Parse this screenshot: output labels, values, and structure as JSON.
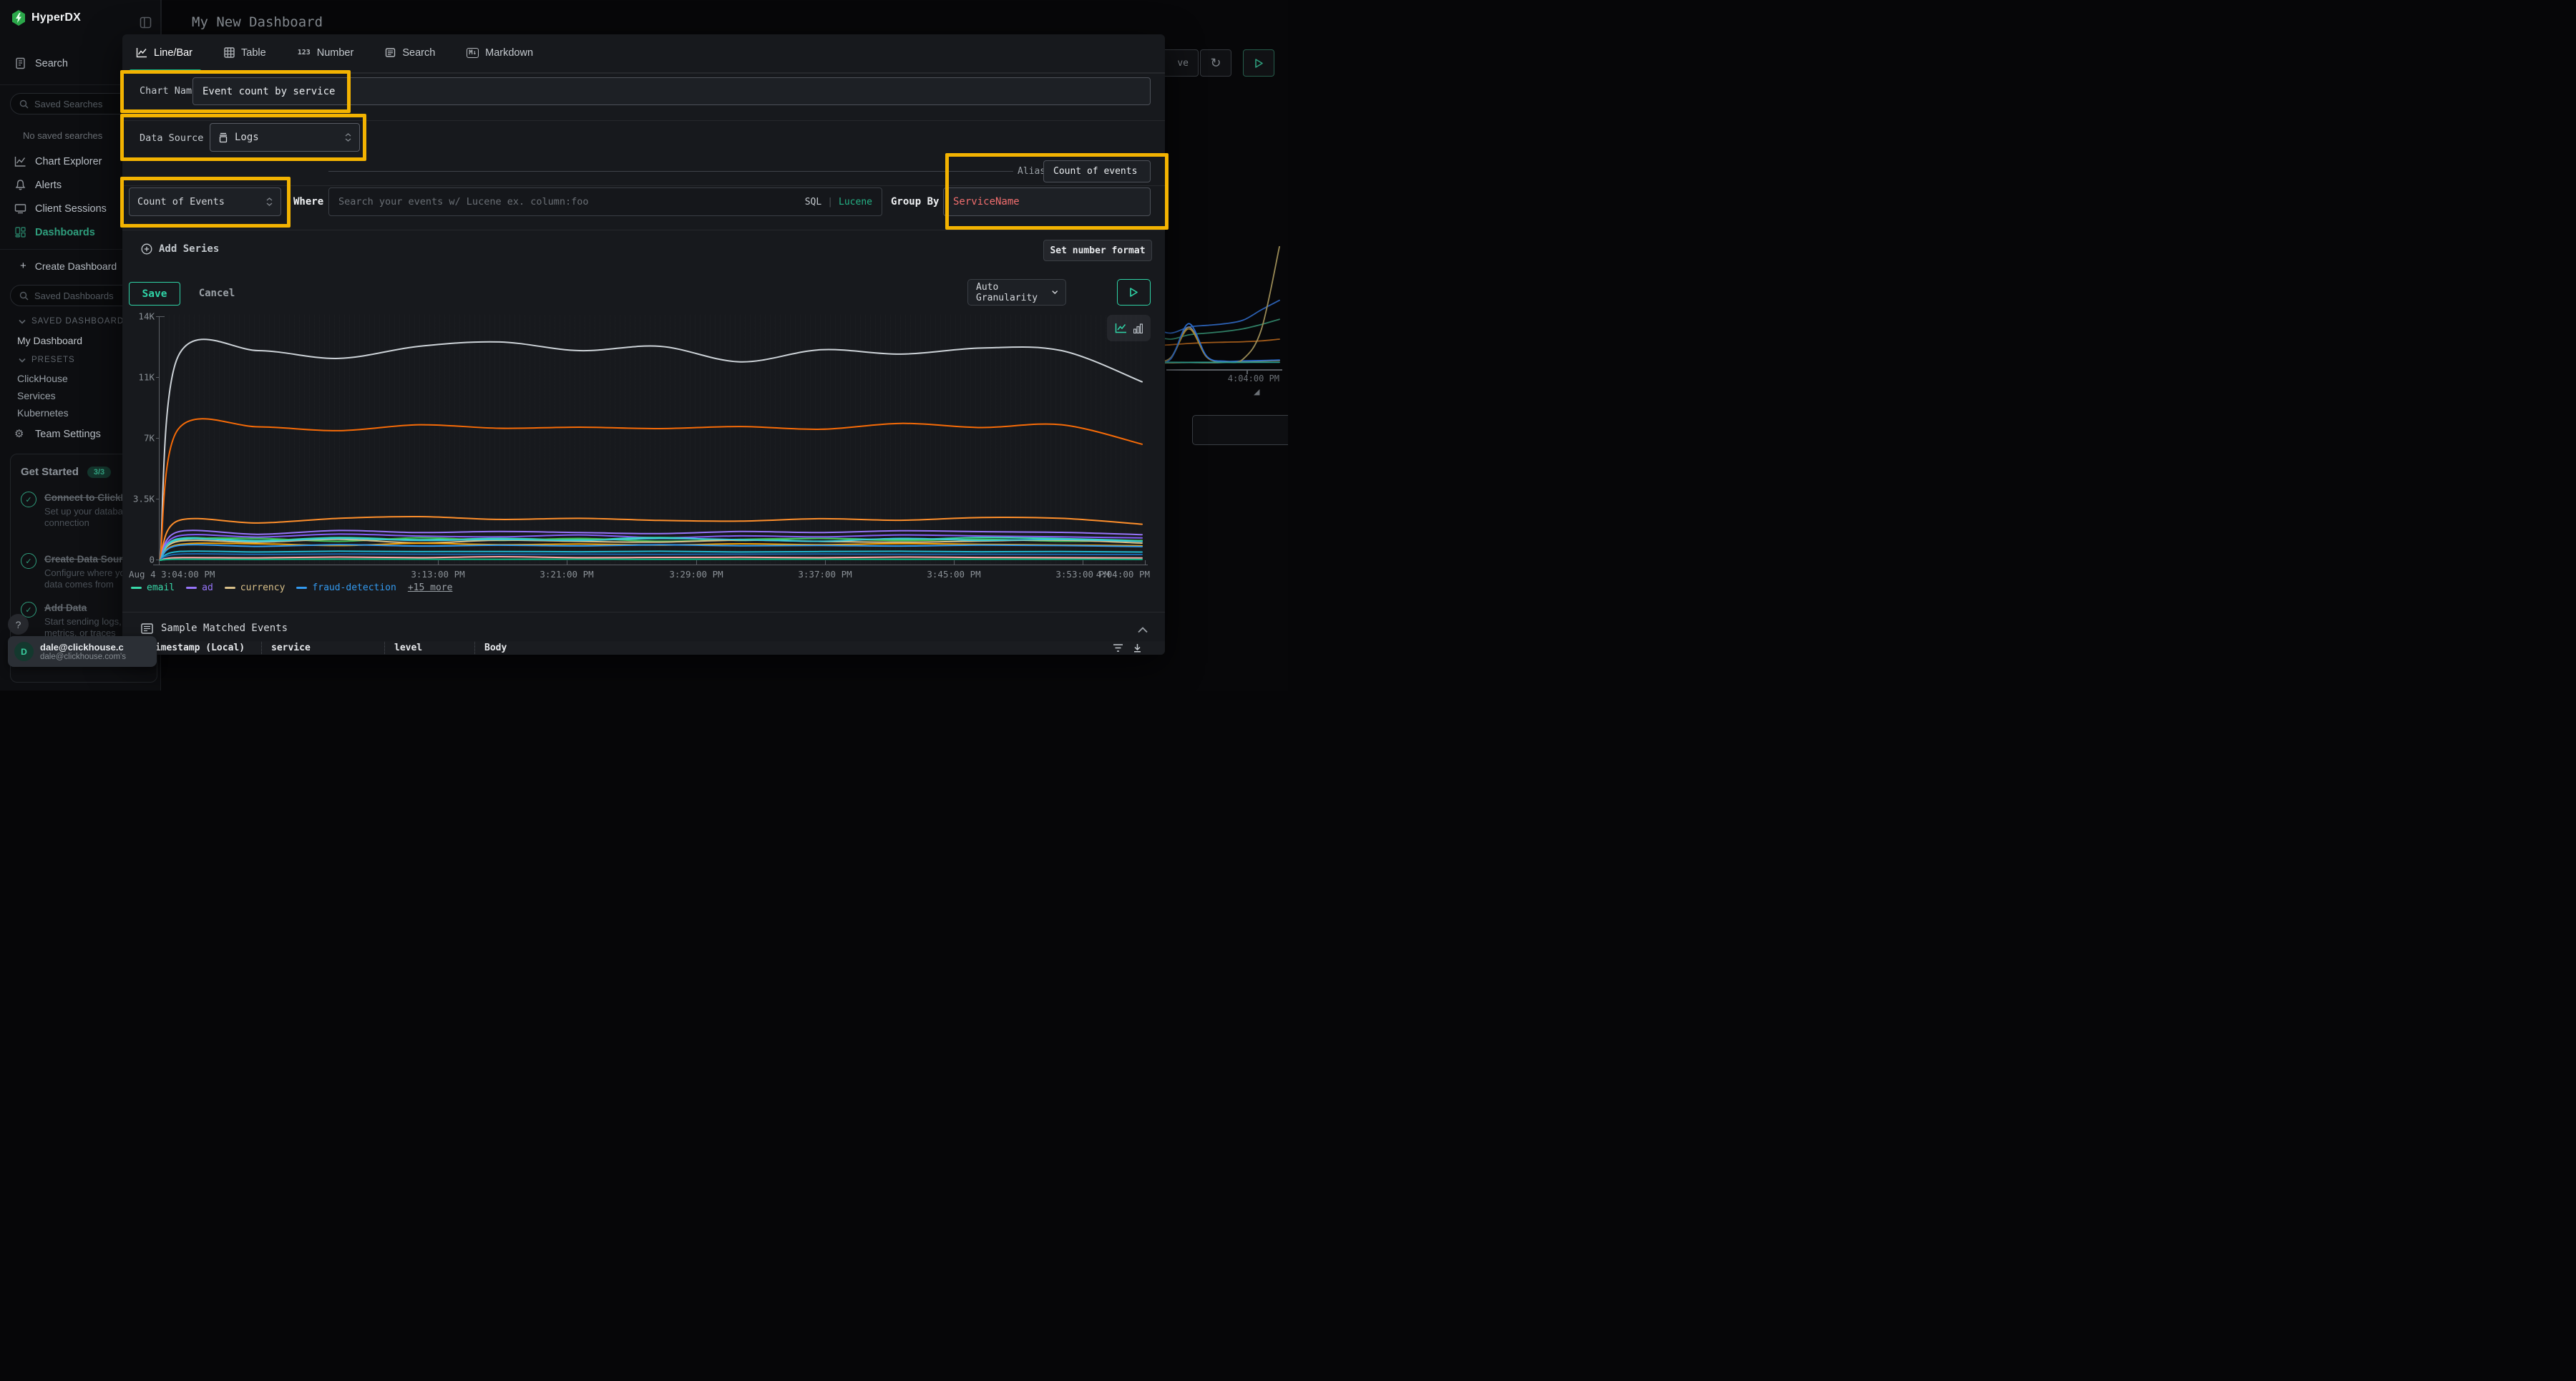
{
  "app": {
    "brand": "HyperDX",
    "page_title": "My New Dashboard"
  },
  "colors": {
    "accent": "#12b886",
    "save": "#2fd3a6",
    "highlight": "#f3b301",
    "group_by_value": "#f06e6e",
    "lucene": "#25b386",
    "sidebar_active": "#2f9e7d"
  },
  "sidebar": {
    "search_label": "Search",
    "saved_searches_placeholder": "Saved Searches",
    "no_saved": "No saved searches",
    "nav": [
      {
        "label": "Chart Explorer"
      },
      {
        "label": "Alerts"
      },
      {
        "label": "Client Sessions"
      },
      {
        "label": "Dashboards"
      }
    ],
    "create_dashboard": "Create Dashboard",
    "saved_dashboards_placeholder": "Saved Dashboards",
    "saved_section": "SAVED DASHBOARDS",
    "my_dashboard": "My Dashboard",
    "presets_section": "PRESETS",
    "presets": [
      "ClickHouse",
      "Services",
      "Kubernetes"
    ],
    "team_settings": "Team Settings",
    "get_started": {
      "title": "Get Started",
      "badge": "3/3",
      "items": [
        {
          "title": "Connect to ClickHouse",
          "desc": "Set up your database connection"
        },
        {
          "title": "Create Data Source",
          "desc": "Configure where your data comes from"
        },
        {
          "title": "Add Data",
          "desc": "Start sending logs, metrics, or traces"
        }
      ]
    },
    "help": "?",
    "user": {
      "avatar": "D",
      "name": "dale@clickhouse.c",
      "sub": "dale@clickhouse.com's"
    }
  },
  "modal": {
    "tabs": [
      {
        "label": "Line/Bar"
      },
      {
        "label": "Table"
      },
      {
        "label": "Number"
      },
      {
        "label": "Search"
      },
      {
        "label": "Markdown"
      }
    ],
    "number_tab_icon": "123",
    "markdown_tab_icon": "M↓",
    "chart_name": {
      "label": "Chart Name",
      "value": "Event count by service"
    },
    "data_source": {
      "label": "Data Source",
      "value": "Logs"
    },
    "aggregation": {
      "value": "Count of Events"
    },
    "where": {
      "label": "Where",
      "placeholder": "Search your events w/ Lucene ex. column:foo",
      "sql": "SQL",
      "divider": "|",
      "lucene": "Lucene"
    },
    "group_by": {
      "label": "Group By",
      "value": "ServiceName"
    },
    "alias": {
      "label": "Alias",
      "value": "Count of events"
    },
    "add_series": "Add Series",
    "set_number_format": "Set number format",
    "save": "Save",
    "cancel": "Cancel",
    "granularity": "Auto Granularity"
  },
  "sample_events": {
    "title": "Sample Matched Events",
    "columns": [
      "Timestamp (Local)",
      "service",
      "level",
      "Body"
    ]
  },
  "background": {
    "partial_button": "ve",
    "time_label": "4:04:00 PM"
  },
  "chart_data": [
    {
      "type": "line",
      "title": "Event count by service",
      "x_axis": {
        "ticks": [
          "Aug 4 3:04:00 PM",
          "3:13:00 PM",
          "3:21:00 PM",
          "3:29:00 PM",
          "3:37:00 PM",
          "3:45:00 PM",
          "3:53:00 PM",
          "4:04:00 PM"
        ]
      },
      "y_axis": {
        "ticks": [
          "0",
          "3.5K",
          "7K",
          "11K",
          "14K"
        ],
        "range": [
          0,
          14000
        ]
      },
      "legend": {
        "entries": [
          {
            "label": "email",
            "color": "#38d9a9"
          },
          {
            "label": "ad",
            "color": "#9775fa"
          },
          {
            "label": "currency",
            "color": "#d9c089"
          },
          {
            "label": "fraud-detection",
            "color": "#339af0"
          }
        ],
        "more": "+15 more"
      },
      "series": [
        {
          "label": "",
          "color": "#cdd3d8",
          "values": [
            0,
            11750,
            12100,
            11650,
            12350,
            12600,
            12100,
            12350,
            11450,
            12150,
            11900,
            12250,
            12100,
            10300
          ]
        },
        {
          "label": "",
          "color": "#f76b07",
          "values": [
            0,
            7550,
            7700,
            7480,
            7820,
            7620,
            7680,
            7600,
            7720,
            7560,
            7900,
            7660,
            7820,
            6700
          ]
        },
        {
          "label": "",
          "color": "#ff8f2b",
          "values": [
            0,
            2280,
            2150,
            2420,
            2520,
            2360,
            2420,
            2300,
            2260,
            2400,
            2310,
            2470,
            2420,
            2080
          ]
        },
        {
          "label": "ad",
          "color": "#9775fa",
          "values": [
            0,
            1640,
            1500,
            1720,
            1600,
            1660,
            1600,
            1540,
            1660,
            1600,
            1700,
            1650,
            1610,
            1480
          ]
        },
        {
          "label": "",
          "color": "#845ef7",
          "values": [
            0,
            1400,
            1340,
            1510,
            1400,
            1350,
            1460,
            1300,
            1410,
            1350,
            1460,
            1400,
            1350,
            1290
          ]
        },
        {
          "label": "email",
          "color": "#38d9a9",
          "values": [
            0,
            1240,
            1140,
            1310,
            1190,
            1260,
            1190,
            1310,
            1150,
            1260,
            1190,
            1310,
            1250,
            1130
          ]
        },
        {
          "label": "",
          "color": "#40c057",
          "values": [
            0,
            1150,
            1260,
            1090,
            1300,
            1150,
            1260,
            1100,
            1210,
            1260,
            1140,
            1210,
            1100,
            1150
          ]
        },
        {
          "label": "currency",
          "color": "#d9c089",
          "values": [
            0,
            1090,
            1040,
            1210,
            1000,
            1160,
            1090,
            1050,
            1160,
            1090,
            1040,
            1110,
            1160,
            990
          ]
        },
        {
          "label": "",
          "color": "#3bc9db",
          "values": [
            0,
            1190,
            1100,
            1260,
            1150,
            1200,
            1150,
            1260,
            1190,
            1100,
            1260,
            1150,
            1200,
            1090
          ]
        },
        {
          "label": "",
          "color": "#f59f00",
          "values": [
            0,
            900,
            950,
            850,
            980,
            900,
            940,
            880,
            950,
            900,
            960,
            920,
            880,
            840
          ]
        },
        {
          "label": "fraud-detection",
          "color": "#339af0",
          "values": [
            0,
            850,
            800,
            900,
            820,
            870,
            830,
            890,
            840,
            860,
            820,
            880,
            850,
            790
          ]
        },
        {
          "label": "",
          "color": "#22b8cf",
          "values": [
            0,
            500,
            480,
            525,
            500,
            510,
            490,
            520,
            480,
            505,
            520,
            490,
            505,
            475
          ]
        },
        {
          "label": "",
          "color": "#1864ab",
          "values": [
            0,
            350,
            340,
            362,
            350,
            345,
            356,
            340,
            352,
            360,
            345,
            350,
            340,
            332
          ]
        },
        {
          "label": "",
          "color": "#ffa8a8",
          "values": [
            0,
            150,
            140,
            185,
            150,
            205,
            150,
            165,
            175,
            150,
            185,
            160,
            150,
            138
          ]
        },
        {
          "label": "",
          "color": "#12b886",
          "values": [
            0,
            62,
            55,
            66,
            60,
            58,
            63,
            57,
            60,
            64,
            58,
            61,
            63,
            54
          ]
        }
      ]
    },
    {
      "type": "line",
      "title": "",
      "x_axis": {
        "ticks": [
          "4:04:00 PM"
        ]
      },
      "y_axis": {
        "ticks": [],
        "range": [
          0,
          14000
        ]
      },
      "series": [
        {
          "label": "",
          "color": "#2b5fb0",
          "values": [
            4700,
            5000,
            4200,
            3600,
            4300,
            4500,
            4700,
            5100,
            6300,
            7400
          ]
        },
        {
          "label": "",
          "color": "#2f7d64",
          "values": [
            3600,
            3550,
            3300,
            2900,
            3400,
            3600,
            3800,
            4100,
            4600,
            5200
          ]
        },
        {
          "label": "",
          "color": "#a05a1a",
          "values": [
            2300,
            2250,
            2150,
            2250,
            2400,
            2500,
            2550,
            2600,
            2700,
            2900
          ]
        },
        {
          "label": "",
          "color": "#8a8f94",
          "values": [
            260,
            300,
            360,
            750,
            4300,
            850,
            310,
            350,
            390,
            440
          ]
        },
        {
          "label": "",
          "color": "#b08a2a",
          "values": [
            250,
            280,
            330,
            700,
            4100,
            800,
            300,
            330,
            380,
            430
          ]
        },
        {
          "label": "",
          "color": "#2b6fd4",
          "values": [
            300,
            300,
            350,
            600,
            4700,
            900,
            350,
            380,
            420,
            480
          ]
        },
        {
          "label": "",
          "color": "#9a8a55",
          "values": [
            120,
            130,
            140,
            160,
            200,
            180,
            220,
            600,
            4000,
            13600
          ]
        },
        {
          "label": "",
          "color": "#2a9d8f",
          "values": [
            200,
            210,
            200,
            220,
            210,
            215,
            205,
            210,
            220,
            215
          ]
        }
      ]
    }
  ]
}
